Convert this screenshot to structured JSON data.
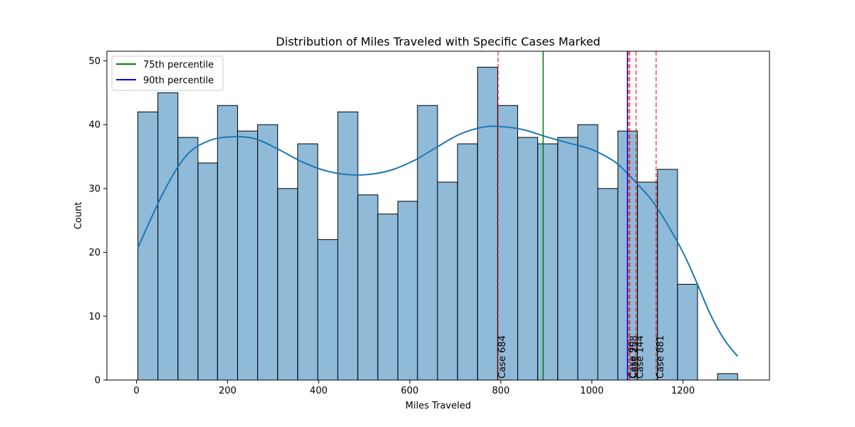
{
  "chart_data": {
    "type": "bar",
    "title": "Distribution of Miles Traveled with Specific Cases Marked",
    "xlabel": "Miles Traveled",
    "ylabel": "Count",
    "xlim": [
      -65,
      1390
    ],
    "ylim": [
      0,
      51.5
    ],
    "xticks": [
      0,
      200,
      400,
      600,
      800,
      1000,
      1200
    ],
    "yticks": [
      0,
      10,
      20,
      30,
      40,
      50
    ],
    "grid": false,
    "legend_position": "top-left",
    "bin_edges": [
      3,
      47,
      91,
      135,
      178,
      222,
      266,
      310,
      354,
      398,
      442,
      486,
      530,
      574,
      617,
      661,
      705,
      749,
      793,
      837,
      881,
      925,
      969,
      1013,
      1057,
      1100,
      1144,
      1188,
      1232,
      1276,
      1320
    ],
    "values": [
      42,
      45,
      38,
      34,
      43,
      39,
      40,
      30,
      37,
      22,
      42,
      29,
      26,
      28,
      43,
      31,
      37,
      49,
      43,
      38,
      37,
      38,
      40,
      30,
      39,
      31,
      33,
      15,
      0,
      1
    ],
    "bar_color": "#1f77b4",
    "kde": {
      "color": "#1f77b4",
      "x": [
        3,
        60,
        110,
        160,
        210,
        260,
        310,
        360,
        410,
        460,
        510,
        560,
        610,
        660,
        710,
        760,
        800,
        850,
        900,
        950,
        1000,
        1050,
        1080,
        1100,
        1130,
        1160,
        1200,
        1230,
        1260,
        1290,
        1320
      ],
      "y": [
        20.7,
        29.5,
        35.2,
        37.5,
        38.1,
        37.8,
        36.2,
        34.3,
        32.9,
        32.2,
        32.2,
        32.9,
        34.4,
        36.5,
        38.5,
        39.6,
        39.7,
        39.2,
        38.1,
        37.1,
        36.1,
        34.2,
        32.2,
        30.7,
        28.3,
        25.1,
        20.0,
        15.3,
        10.3,
        6.4,
        3.7
      ]
    },
    "reference_lines": [
      {
        "name": "75th percentile",
        "x": 893,
        "color": "#008000"
      },
      {
        "name": "90th percentile",
        "x": 1078,
        "color": "#0000ff"
      }
    ],
    "case_color": "#ff0000",
    "cases": [
      {
        "label": "Case 684",
        "x": 794
      },
      {
        "label": "Case 90",
        "x": 1080
      },
      {
        "label": "Case 258",
        "x": 1083
      },
      {
        "label": "Case 144",
        "x": 1097
      },
      {
        "label": "Case 881",
        "x": 1141
      }
    ]
  }
}
